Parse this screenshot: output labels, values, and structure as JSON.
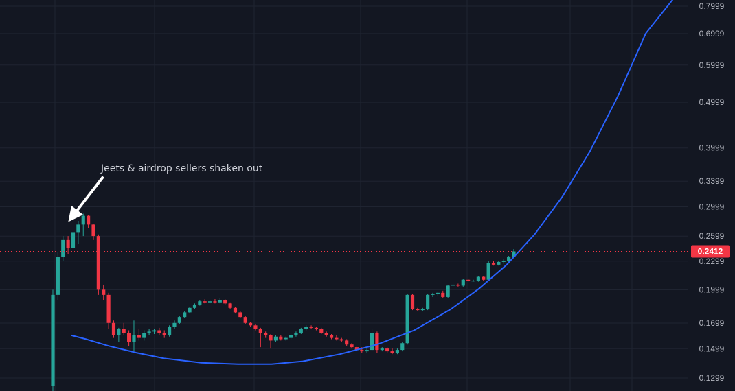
{
  "chart_data": {
    "type": "candlestick",
    "title": "",
    "xlabel": "",
    "ylabel": "",
    "ylim": [
      0.125,
      0.81
    ],
    "y_scale": "log",
    "grid": true,
    "y_ticks": [
      "0.7999",
      "0.6999",
      "0.5999",
      "0.4999",
      "0.3999",
      "0.3399",
      "0.2999",
      "0.2599",
      "0.2299",
      "0.1999",
      "0.1699",
      "0.1499",
      "0.1299"
    ],
    "last_price": {
      "label": "0.2412",
      "value": 0.2412,
      "color": "#f23645"
    },
    "colors": {
      "up": "#26a69a",
      "down": "#f23645",
      "curve": "#2962ff",
      "background": "#131722",
      "grid": "#1f2431"
    },
    "annotation": {
      "text": "Jeets & airdrop sellers shaken out",
      "points_to_value": 0.287
    },
    "curve": {
      "name": "",
      "points": [
        [
          0,
          0.16
        ],
        [
          8,
          0.157
        ],
        [
          20,
          0.152
        ],
        [
          35,
          0.147
        ],
        [
          50,
          0.143
        ],
        [
          70,
          0.14
        ],
        [
          90,
          0.139
        ],
        [
          108,
          0.139
        ],
        [
          125,
          0.141
        ],
        [
          145,
          0.146
        ],
        [
          165,
          0.153
        ],
        [
          185,
          0.164
        ],
        [
          205,
          0.182
        ],
        [
          220,
          0.201
        ],
        [
          235,
          0.226
        ],
        [
          250,
          0.262
        ],
        [
          265,
          0.315
        ],
        [
          280,
          0.394
        ],
        [
          295,
          0.515
        ],
        [
          310,
          0.7
        ],
        [
          325,
          0.83
        ]
      ]
    },
    "candles": [
      [
        0.125,
        0.2,
        0.12,
        0.195
      ],
      [
        0.195,
        0.24,
        0.19,
        0.235
      ],
      [
        0.235,
        0.26,
        0.23,
        0.255
      ],
      [
        0.255,
        0.26,
        0.238,
        0.245
      ],
      [
        0.245,
        0.27,
        0.24,
        0.265
      ],
      [
        0.265,
        0.28,
        0.25,
        0.275
      ],
      [
        0.275,
        0.29,
        0.26,
        0.287
      ],
      [
        0.287,
        0.288,
        0.27,
        0.275
      ],
      [
        0.275,
        0.276,
        0.255,
        0.26
      ],
      [
        0.26,
        0.262,
        0.195,
        0.2
      ],
      [
        0.2,
        0.205,
        0.19,
        0.195
      ],
      [
        0.195,
        0.197,
        0.165,
        0.17
      ],
      [
        0.17,
        0.172,
        0.158,
        0.16
      ],
      [
        0.16,
        0.166,
        0.155,
        0.165
      ],
      [
        0.165,
        0.17,
        0.16,
        0.162
      ],
      [
        0.162,
        0.164,
        0.152,
        0.155
      ],
      [
        0.155,
        0.172,
        0.148,
        0.16
      ],
      [
        0.16,
        0.165,
        0.156,
        0.158
      ],
      [
        0.158,
        0.164,
        0.156,
        0.162
      ],
      [
        0.162,
        0.165,
        0.16,
        0.163
      ],
      [
        0.163,
        0.165,
        0.161,
        0.164
      ],
      [
        0.164,
        0.166,
        0.16,
        0.162
      ],
      [
        0.162,
        0.164,
        0.158,
        0.16
      ],
      [
        0.16,
        0.168,
        0.159,
        0.167
      ],
      [
        0.167,
        0.172,
        0.165,
        0.17
      ],
      [
        0.17,
        0.176,
        0.169,
        0.175
      ],
      [
        0.175,
        0.18,
        0.174,
        0.179
      ],
      [
        0.179,
        0.184,
        0.178,
        0.183
      ],
      [
        0.183,
        0.187,
        0.182,
        0.186
      ],
      [
        0.186,
        0.19,
        0.185,
        0.189
      ],
      [
        0.189,
        0.191,
        0.187,
        0.188
      ],
      [
        0.188,
        0.19,
        0.187,
        0.189
      ],
      [
        0.189,
        0.191,
        0.187,
        0.188
      ],
      [
        0.188,
        0.192,
        0.187,
        0.19
      ],
      [
        0.19,
        0.191,
        0.186,
        0.187
      ],
      [
        0.187,
        0.188,
        0.182,
        0.183
      ],
      [
        0.183,
        0.184,
        0.178,
        0.179
      ],
      [
        0.179,
        0.18,
        0.174,
        0.175
      ],
      [
        0.175,
        0.176,
        0.169,
        0.17
      ],
      [
        0.17,
        0.171,
        0.167,
        0.168
      ],
      [
        0.168,
        0.169,
        0.164,
        0.165
      ],
      [
        0.165,
        0.166,
        0.151,
        0.162
      ],
      [
        0.162,
        0.163,
        0.158,
        0.16
      ],
      [
        0.16,
        0.161,
        0.15,
        0.156
      ],
      [
        0.156,
        0.16,
        0.155,
        0.159
      ],
      [
        0.159,
        0.16,
        0.156,
        0.157
      ],
      [
        0.157,
        0.159,
        0.156,
        0.158
      ],
      [
        0.158,
        0.161,
        0.157,
        0.16
      ],
      [
        0.16,
        0.163,
        0.159,
        0.162
      ],
      [
        0.162,
        0.166,
        0.161,
        0.165
      ],
      [
        0.165,
        0.168,
        0.164,
        0.167
      ],
      [
        0.167,
        0.168,
        0.165,
        0.166
      ],
      [
        0.166,
        0.167,
        0.164,
        0.165
      ],
      [
        0.165,
        0.166,
        0.161,
        0.162
      ],
      [
        0.162,
        0.163,
        0.159,
        0.16
      ],
      [
        0.16,
        0.161,
        0.157,
        0.158
      ],
      [
        0.158,
        0.16,
        0.156,
        0.157
      ],
      [
        0.157,
        0.158,
        0.155,
        0.156
      ],
      [
        0.156,
        0.157,
        0.152,
        0.153
      ],
      [
        0.153,
        0.154,
        0.15,
        0.151
      ],
      [
        0.151,
        0.152,
        0.148,
        0.149
      ],
      [
        0.149,
        0.151,
        0.147,
        0.148
      ],
      [
        0.148,
        0.15,
        0.147,
        0.149
      ],
      [
        0.149,
        0.165,
        0.148,
        0.162
      ],
      [
        0.162,
        0.163,
        0.147,
        0.149
      ],
      [
        0.149,
        0.151,
        0.148,
        0.15
      ],
      [
        0.15,
        0.151,
        0.147,
        0.148
      ],
      [
        0.148,
        0.15,
        0.146,
        0.147
      ],
      [
        0.147,
        0.15,
        0.146,
        0.149
      ],
      [
        0.149,
        0.155,
        0.148,
        0.154
      ],
      [
        0.154,
        0.196,
        0.153,
        0.195
      ],
      [
        0.195,
        0.196,
        0.181,
        0.182
      ],
      [
        0.182,
        0.183,
        0.18,
        0.181
      ],
      [
        0.181,
        0.183,
        0.18,
        0.182
      ],
      [
        0.182,
        0.196,
        0.181,
        0.195
      ],
      [
        0.195,
        0.197,
        0.193,
        0.196
      ],
      [
        0.196,
        0.198,
        0.194,
        0.197
      ],
      [
        0.197,
        0.199,
        0.192,
        0.193
      ],
      [
        0.193,
        0.205,
        0.192,
        0.204
      ],
      [
        0.204,
        0.206,
        0.203,
        0.205
      ],
      [
        0.205,
        0.206,
        0.203,
        0.204
      ],
      [
        0.204,
        0.211,
        0.203,
        0.21
      ],
      [
        0.21,
        0.211,
        0.208,
        0.209
      ],
      [
        0.209,
        0.21,
        0.208,
        0.209
      ],
      [
        0.209,
        0.214,
        0.208,
        0.213
      ],
      [
        0.213,
        0.214,
        0.209,
        0.21
      ],
      [
        0.21,
        0.23,
        0.209,
        0.228
      ],
      [
        0.228,
        0.23,
        0.225,
        0.226
      ],
      [
        0.226,
        0.23,
        0.225,
        0.229
      ],
      [
        0.229,
        0.232,
        0.227,
        0.23
      ],
      [
        0.23,
        0.236,
        0.229,
        0.235
      ],
      [
        0.235,
        0.244,
        0.234,
        0.2412
      ]
    ]
  }
}
